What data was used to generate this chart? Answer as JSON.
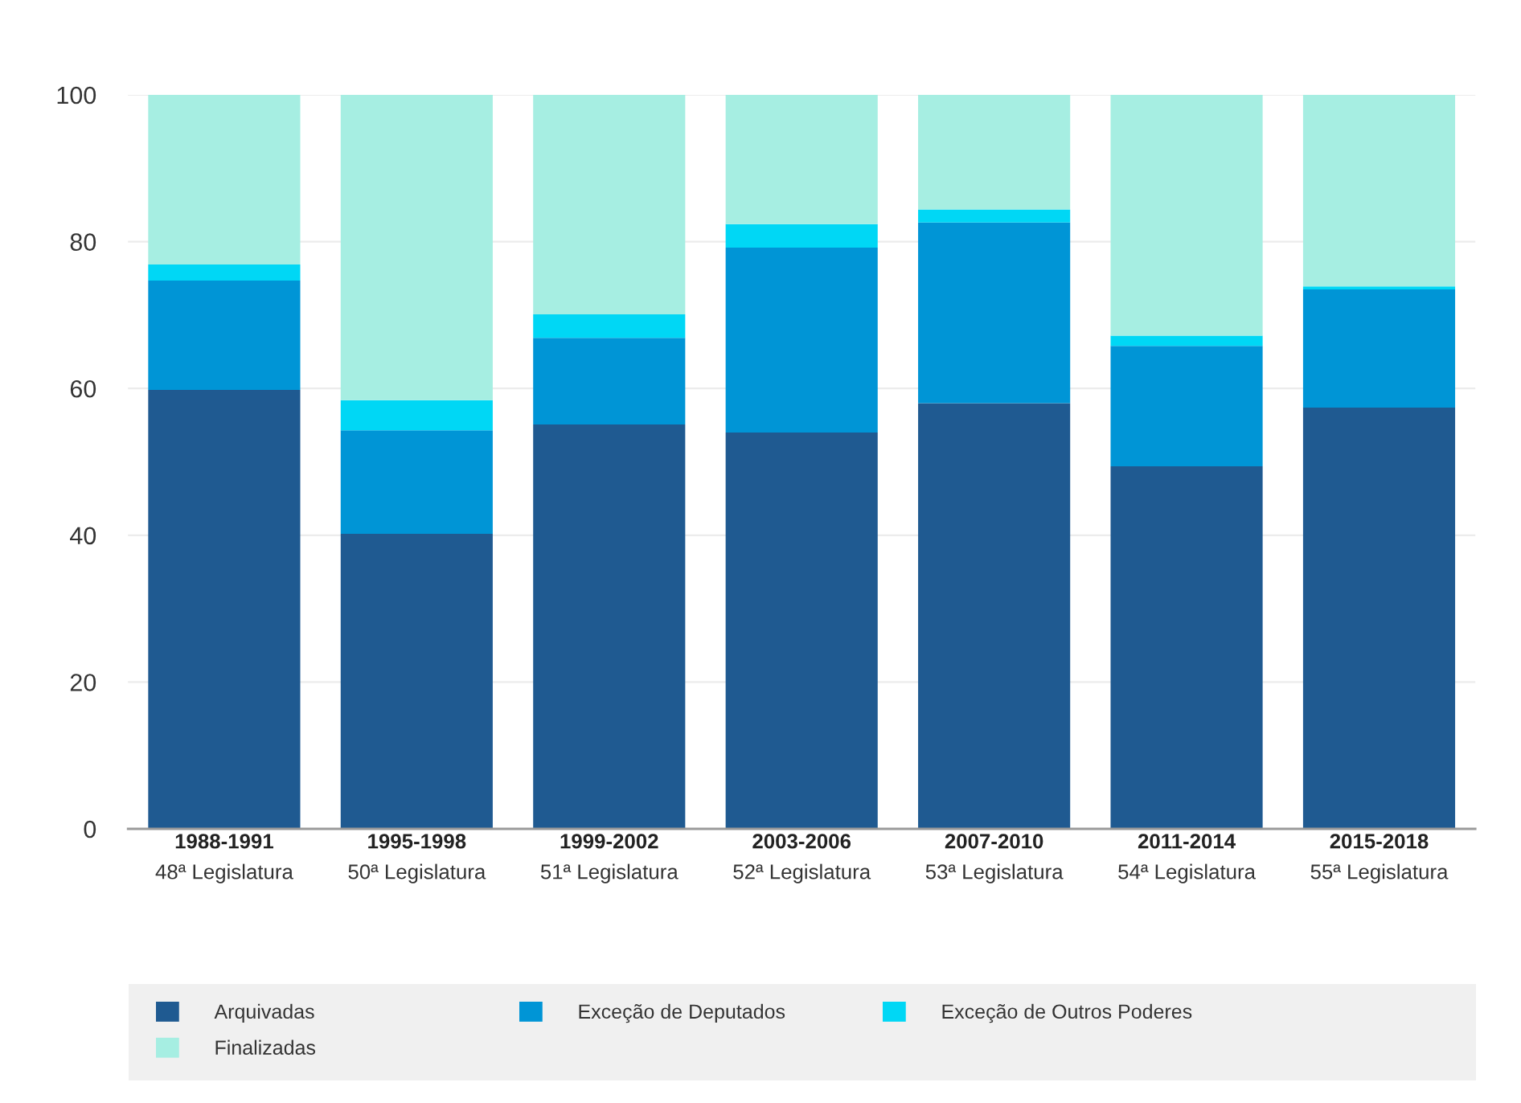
{
  "chart_data": {
    "type": "bar",
    "stacked": true,
    "categories": [
      "1988-1991\n48ª Legislatura",
      "1995-1998\n50ª Legislatura",
      "1999-2002\n51ª Legislatura",
      "2003-2006\n52ª Legislatura",
      "2007-2010\n53ª Legislatura",
      "2011-2014\n54ª Legislatura",
      "2015-2018\n55ª Legislatura"
    ],
    "series": [
      {
        "name": "Arquivadas",
        "color": "#1f5a91",
        "values": [
          59.8,
          40.2,
          55.1,
          54.0,
          58.0,
          49.4,
          57.4
        ]
      },
      {
        "name": "Exceção de Deputados",
        "color": "#0095d6",
        "values": [
          14.9,
          14.1,
          11.8,
          25.2,
          24.6,
          16.4,
          16.1
        ]
      },
      {
        "name": "Exceção de Outros Poderes",
        "color": "#00d7f5",
        "values": [
          2.2,
          4.1,
          3.2,
          3.2,
          1.8,
          1.4,
          0.4
        ]
      },
      {
        "name": "Finalizadas",
        "color": "#a6eee2",
        "values": [
          23.1,
          41.6,
          29.9,
          17.6,
          15.6,
          32.8,
          26.1
        ]
      }
    ],
    "ylim": [
      0,
      100
    ],
    "yticks": [
      0,
      20,
      40,
      60,
      80,
      100
    ],
    "grid": "y",
    "legend": "bottom"
  }
}
